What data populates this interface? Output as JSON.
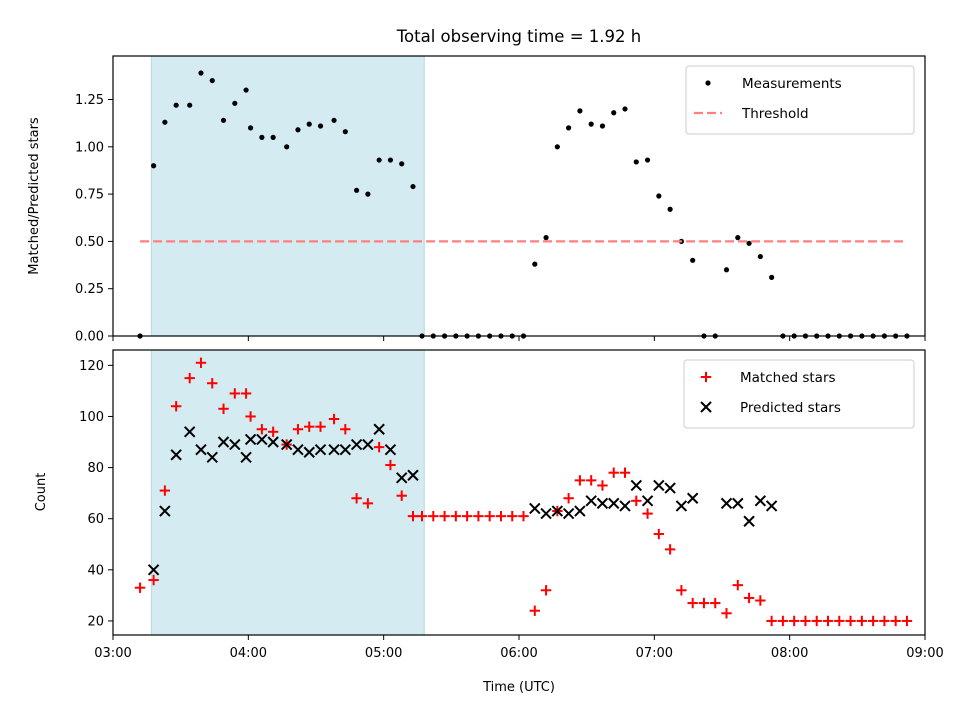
{
  "figure": {
    "title": "Total observing time = 1.92 h",
    "xlabel": "Time (UTC)"
  },
  "chart_data": [
    {
      "type": "scatter",
      "ylabel": "Matched/Predicted stars",
      "xlim": [
        "03:00",
        "09:00"
      ],
      "ylim": [
        0,
        1.48
      ],
      "x_ticks": [
        "03:00",
        "04:00",
        "05:00",
        "06:00",
        "07:00",
        "08:00",
        "09:00"
      ],
      "y_ticks": [
        "0.00",
        "0.25",
        "0.50",
        "0.75",
        "1.00",
        "1.25"
      ],
      "highlight_span": {
        "start": "03:17",
        "end": "05:18",
        "color": "#d4ebf1"
      },
      "legend": {
        "location": "upper right",
        "entries": [
          "Measurements",
          "Threshold"
        ]
      },
      "series": [
        {
          "name": "Measurements",
          "color": "#000000",
          "marker": "dot",
          "points": [
            [
              "03:12",
              0
            ],
            [
              "03:18",
              0.9
            ],
            [
              "03:23",
              1.13
            ],
            [
              "03:28",
              1.22
            ],
            [
              "03:34",
              1.22
            ],
            [
              "03:39",
              1.39
            ],
            [
              "03:44",
              1.35
            ],
            [
              "03:49",
              1.14
            ],
            [
              "03:54",
              1.23
            ],
            [
              "03:59",
              1.3
            ],
            [
              "04:01",
              1.1
            ],
            [
              "04:06",
              1.05
            ],
            [
              "04:11",
              1.05
            ],
            [
              "04:17",
              1.0
            ],
            [
              "04:22",
              1.09
            ],
            [
              "04:27",
              1.12
            ],
            [
              "04:32",
              1.11
            ],
            [
              "04:38",
              1.14
            ],
            [
              "04:43",
              1.08
            ],
            [
              "04:48",
              0.77
            ],
            [
              "04:53",
              0.75
            ],
            [
              "04:58",
              0.93
            ],
            [
              "05:03",
              0.93
            ],
            [
              "05:08",
              0.91
            ],
            [
              "05:13",
              0.79
            ],
            [
              "05:17",
              0
            ],
            [
              "05:22",
              0
            ],
            [
              "05:27",
              0
            ],
            [
              "05:32",
              0
            ],
            [
              "05:37",
              0
            ],
            [
              "05:42",
              0
            ],
            [
              "05:47",
              0
            ],
            [
              "05:52",
              0
            ],
            [
              "05:57",
              0
            ],
            [
              "06:02",
              0
            ],
            [
              "06:07",
              0.38
            ],
            [
              "06:12",
              0.52
            ],
            [
              "06:17",
              1.0
            ],
            [
              "06:22",
              1.1
            ],
            [
              "06:27",
              1.19
            ],
            [
              "06:32",
              1.12
            ],
            [
              "06:37",
              1.11
            ],
            [
              "06:42",
              1.18
            ],
            [
              "06:47",
              1.2
            ],
            [
              "06:52",
              0.92
            ],
            [
              "06:57",
              0.93
            ],
            [
              "07:02",
              0.74
            ],
            [
              "07:07",
              0.67
            ],
            [
              "07:12",
              0.5
            ],
            [
              "07:17",
              0.4
            ],
            [
              "07:22",
              0
            ],
            [
              "07:27",
              0
            ],
            [
              "07:32",
              0.35
            ],
            [
              "07:37",
              0.52
            ],
            [
              "07:42",
              0.49
            ],
            [
              "07:47",
              0.42
            ],
            [
              "07:52",
              0.31
            ],
            [
              "07:57",
              0
            ],
            [
              "08:02",
              0
            ],
            [
              "08:07",
              0
            ],
            [
              "08:12",
              0
            ],
            [
              "08:17",
              0
            ],
            [
              "08:22",
              0
            ],
            [
              "08:27",
              0
            ],
            [
              "08:32",
              0
            ],
            [
              "08:37",
              0
            ],
            [
              "08:42",
              0
            ],
            [
              "08:47",
              0
            ],
            [
              "08:52",
              0
            ]
          ]
        },
        {
          "name": "Threshold",
          "color": "#ff7f7f",
          "style": "dashed",
          "points": [
            [
              "03:12",
              0.5
            ],
            [
              "08:52",
              0.5
            ]
          ]
        }
      ]
    },
    {
      "type": "scatter",
      "ylabel": "Count",
      "xlim": [
        "03:00",
        "09:00"
      ],
      "ylim": [
        14.5,
        126
      ],
      "x_ticks": [
        "03:00",
        "04:00",
        "05:00",
        "06:00",
        "07:00",
        "08:00",
        "09:00"
      ],
      "y_ticks": [
        "20",
        "40",
        "60",
        "80",
        "100",
        "120"
      ],
      "highlight_span": {
        "start": "03:17",
        "end": "05:18",
        "color": "#d4ebf1"
      },
      "legend": {
        "location": "upper right",
        "entries": [
          "Matched stars",
          "Predicted stars"
        ]
      },
      "series": [
        {
          "name": "Matched stars",
          "color": "#ff0000",
          "marker": "plus",
          "points": [
            [
              "03:12",
              33
            ],
            [
              "03:18",
              36
            ],
            [
              "03:23",
              71
            ],
            [
              "03:28",
              104
            ],
            [
              "03:34",
              115
            ],
            [
              "03:39",
              121
            ],
            [
              "03:44",
              113
            ],
            [
              "03:49",
              103
            ],
            [
              "03:54",
              109
            ],
            [
              "03:59",
              109
            ],
            [
              "04:01",
              100
            ],
            [
              "04:06",
              95
            ],
            [
              "04:11",
              94
            ],
            [
              "04:17",
              89
            ],
            [
              "04:22",
              95
            ],
            [
              "04:27",
              96
            ],
            [
              "04:32",
              96
            ],
            [
              "04:38",
              99
            ],
            [
              "04:43",
              95
            ],
            [
              "04:48",
              68
            ],
            [
              "04:53",
              66
            ],
            [
              "04:58",
              88
            ],
            [
              "05:03",
              81
            ],
            [
              "05:08",
              69
            ],
            [
              "05:13",
              61
            ],
            [
              "05:17",
              61
            ],
            [
              "05:22",
              61
            ],
            [
              "05:27",
              61
            ],
            [
              "05:32",
              61
            ],
            [
              "05:37",
              61
            ],
            [
              "05:42",
              61
            ],
            [
              "05:47",
              61
            ],
            [
              "05:52",
              61
            ],
            [
              "05:57",
              61
            ],
            [
              "06:02",
              61
            ],
            [
              "06:07",
              24
            ],
            [
              "06:12",
              32
            ],
            [
              "06:17",
              63
            ],
            [
              "06:22",
              68
            ],
            [
              "06:27",
              75
            ],
            [
              "06:32",
              75
            ],
            [
              "06:37",
              73
            ],
            [
              "06:42",
              78
            ],
            [
              "06:47",
              78
            ],
            [
              "06:52",
              67
            ],
            [
              "06:57",
              62
            ],
            [
              "07:02",
              54
            ],
            [
              "07:07",
              48
            ],
            [
              "07:12",
              32
            ],
            [
              "07:17",
              27
            ],
            [
              "07:22",
              27
            ],
            [
              "07:27",
              27
            ],
            [
              "07:32",
              23
            ],
            [
              "07:37",
              34
            ],
            [
              "07:42",
              29
            ],
            [
              "07:47",
              28
            ],
            [
              "07:52",
              20
            ],
            [
              "07:57",
              20
            ],
            [
              "08:02",
              20
            ],
            [
              "08:07",
              20
            ],
            [
              "08:12",
              20
            ],
            [
              "08:17",
              20
            ],
            [
              "08:22",
              20
            ],
            [
              "08:27",
              20
            ],
            [
              "08:32",
              20
            ],
            [
              "08:37",
              20
            ],
            [
              "08:42",
              20
            ],
            [
              "08:47",
              20
            ],
            [
              "08:52",
              20
            ]
          ]
        },
        {
          "name": "Predicted stars",
          "color": "#000000",
          "marker": "x",
          "points": [
            [
              "03:18",
              40
            ],
            [
              "03:23",
              63
            ],
            [
              "03:28",
              85
            ],
            [
              "03:34",
              94
            ],
            [
              "03:39",
              87
            ],
            [
              "03:44",
              84
            ],
            [
              "03:49",
              90
            ],
            [
              "03:54",
              89
            ],
            [
              "03:59",
              84
            ],
            [
              "04:01",
              91
            ],
            [
              "04:06",
              91
            ],
            [
              "04:11",
              90
            ],
            [
              "04:17",
              89
            ],
            [
              "04:22",
              87
            ],
            [
              "04:27",
              86
            ],
            [
              "04:32",
              87
            ],
            [
              "04:38",
              87
            ],
            [
              "04:43",
              87
            ],
            [
              "04:48",
              89
            ],
            [
              "04:53",
              89
            ],
            [
              "04:58",
              95
            ],
            [
              "05:03",
              87
            ],
            [
              "05:08",
              76
            ],
            [
              "05:13",
              77
            ],
            [
              "06:07",
              64
            ],
            [
              "06:12",
              62
            ],
            [
              "06:17",
              63
            ],
            [
              "06:22",
              62
            ],
            [
              "06:27",
              63
            ],
            [
              "06:32",
              67
            ],
            [
              "06:37",
              66
            ],
            [
              "06:42",
              66
            ],
            [
              "06:47",
              65
            ],
            [
              "06:52",
              73
            ],
            [
              "06:57",
              67
            ],
            [
              "07:02",
              73
            ],
            [
              "07:07",
              72
            ],
            [
              "07:12",
              65
            ],
            [
              "07:17",
              68
            ],
            [
              "07:32",
              66
            ],
            [
              "07:37",
              66
            ],
            [
              "07:42",
              59
            ],
            [
              "07:47",
              67
            ],
            [
              "07:52",
              65
            ]
          ]
        }
      ]
    }
  ]
}
